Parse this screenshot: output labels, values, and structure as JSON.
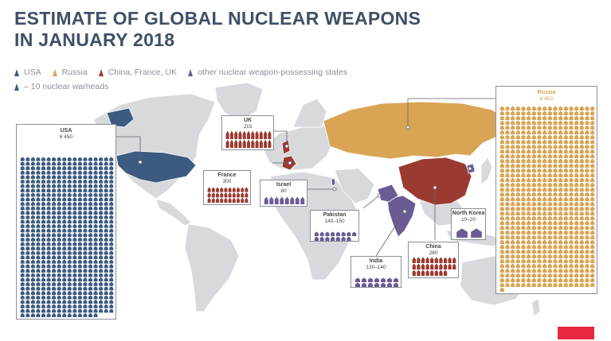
{
  "title": {
    "line1": "ESTIMATE OF GLOBAL NUCLEAR WEAPONS",
    "line2": "IN JANUARY 2018"
  },
  "legend": {
    "categories": [
      {
        "label": "USA",
        "color": "#3d5a80"
      },
      {
        "label": "Russia",
        "color": "#d9a554"
      },
      {
        "label": "China, France, UK",
        "color": "#9b3a30"
      },
      {
        "label": "other nuclear weapon-possessing states",
        "color": "#6b5b95"
      }
    ],
    "unit": {
      "label": "– 10 nuclear warheads",
      "color": "#3d5a80"
    }
  },
  "colors": {
    "usa": "#3d5a80",
    "russia": "#d9a554",
    "china_france_uk": "#9b3a30",
    "other": "#6b5b95",
    "land": "#d7d9dc",
    "ocean": "#ffffff",
    "brand": "#e8283f"
  },
  "icons": {
    "warhead": "warhead-icon"
  },
  "chart_data": {
    "type": "pictogram-map",
    "title": "ESTIMATE OF GLOBAL NUCLEAR WEAPONS IN JANUARY 2018",
    "unit": "10 nuclear warheads per icon",
    "countries": [
      {
        "id": "usa",
        "name": "USA",
        "value_label": "6 450",
        "value": 6450,
        "group": "usa"
      },
      {
        "id": "russia",
        "name": "Russia",
        "value_label": "6 850",
        "value": 6850,
        "group": "russia"
      },
      {
        "id": "uk",
        "name": "UK",
        "value_label": "215",
        "value": 215,
        "group": "china_france_uk"
      },
      {
        "id": "france",
        "name": "France",
        "value_label": "300",
        "value": 300,
        "group": "china_france_uk"
      },
      {
        "id": "china",
        "name": "China",
        "value_label": "280",
        "value": 280,
        "group": "china_france_uk"
      },
      {
        "id": "israel",
        "name": "Israel",
        "value_label": "80",
        "value": 80,
        "group": "other"
      },
      {
        "id": "pakistan",
        "name": "Pakistan",
        "value_label": "140–150",
        "value": 145,
        "group": "other"
      },
      {
        "id": "india",
        "name": "India",
        "value_label": "130–140",
        "value": 135,
        "group": "other"
      },
      {
        "id": "north_korea",
        "name": "North Korea",
        "value_label": "10–20",
        "value": 15,
        "group": "other"
      }
    ]
  }
}
